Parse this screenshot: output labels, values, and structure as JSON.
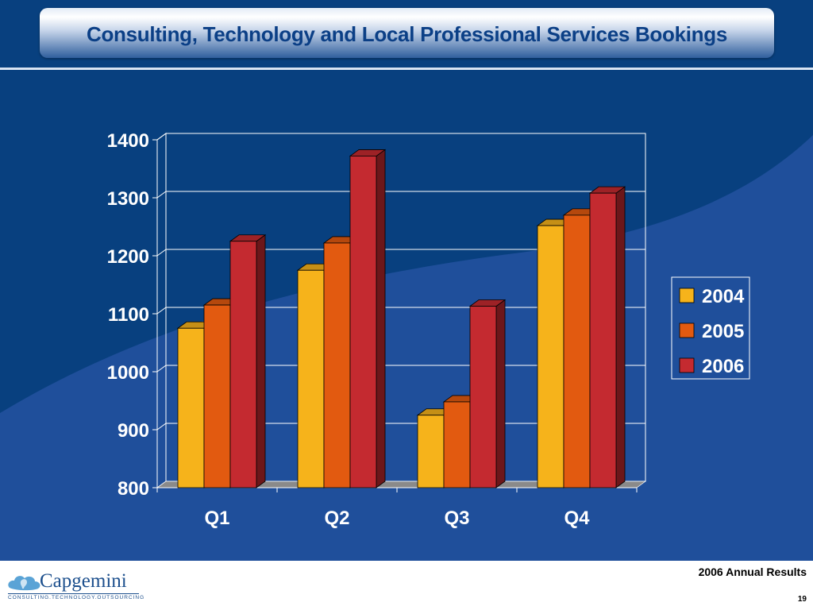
{
  "slide": {
    "title": "Consulting, Technology and Local Professional Services Bookings",
    "footer": "2006 Annual Results",
    "page_number": "19",
    "logo": {
      "wordmark": "Capgemini",
      "tagline": "CONSULTING.TECHNOLOGY.OUTSOURCING",
      "icon": "cloud-spade-icon"
    }
  },
  "colors": {
    "background": "#08407f",
    "title_text": "#0b3f86",
    "series": [
      "#f6b31b",
      "#e25a10",
      "#c42a30"
    ]
  },
  "chart_data": {
    "type": "bar",
    "style": "3d-clustered-column",
    "categories": [
      "Q1",
      "Q2",
      "Q3",
      "Q4"
    ],
    "series": [
      {
        "name": "2004",
        "values": [
          1075,
          1175,
          925,
          1252
        ]
      },
      {
        "name": "2005",
        "values": [
          1115,
          1222,
          948,
          1270
        ]
      },
      {
        "name": "2006",
        "values": [
          1225,
          1372,
          1113,
          1308
        ]
      }
    ],
    "title": "",
    "xlabel": "",
    "ylabel": "",
    "ylim": [
      800,
      1400
    ],
    "yticks": [
      "800",
      "900",
      "1000",
      "1100",
      "1200",
      "1300",
      "1400"
    ],
    "grid": true,
    "legend": "right"
  }
}
